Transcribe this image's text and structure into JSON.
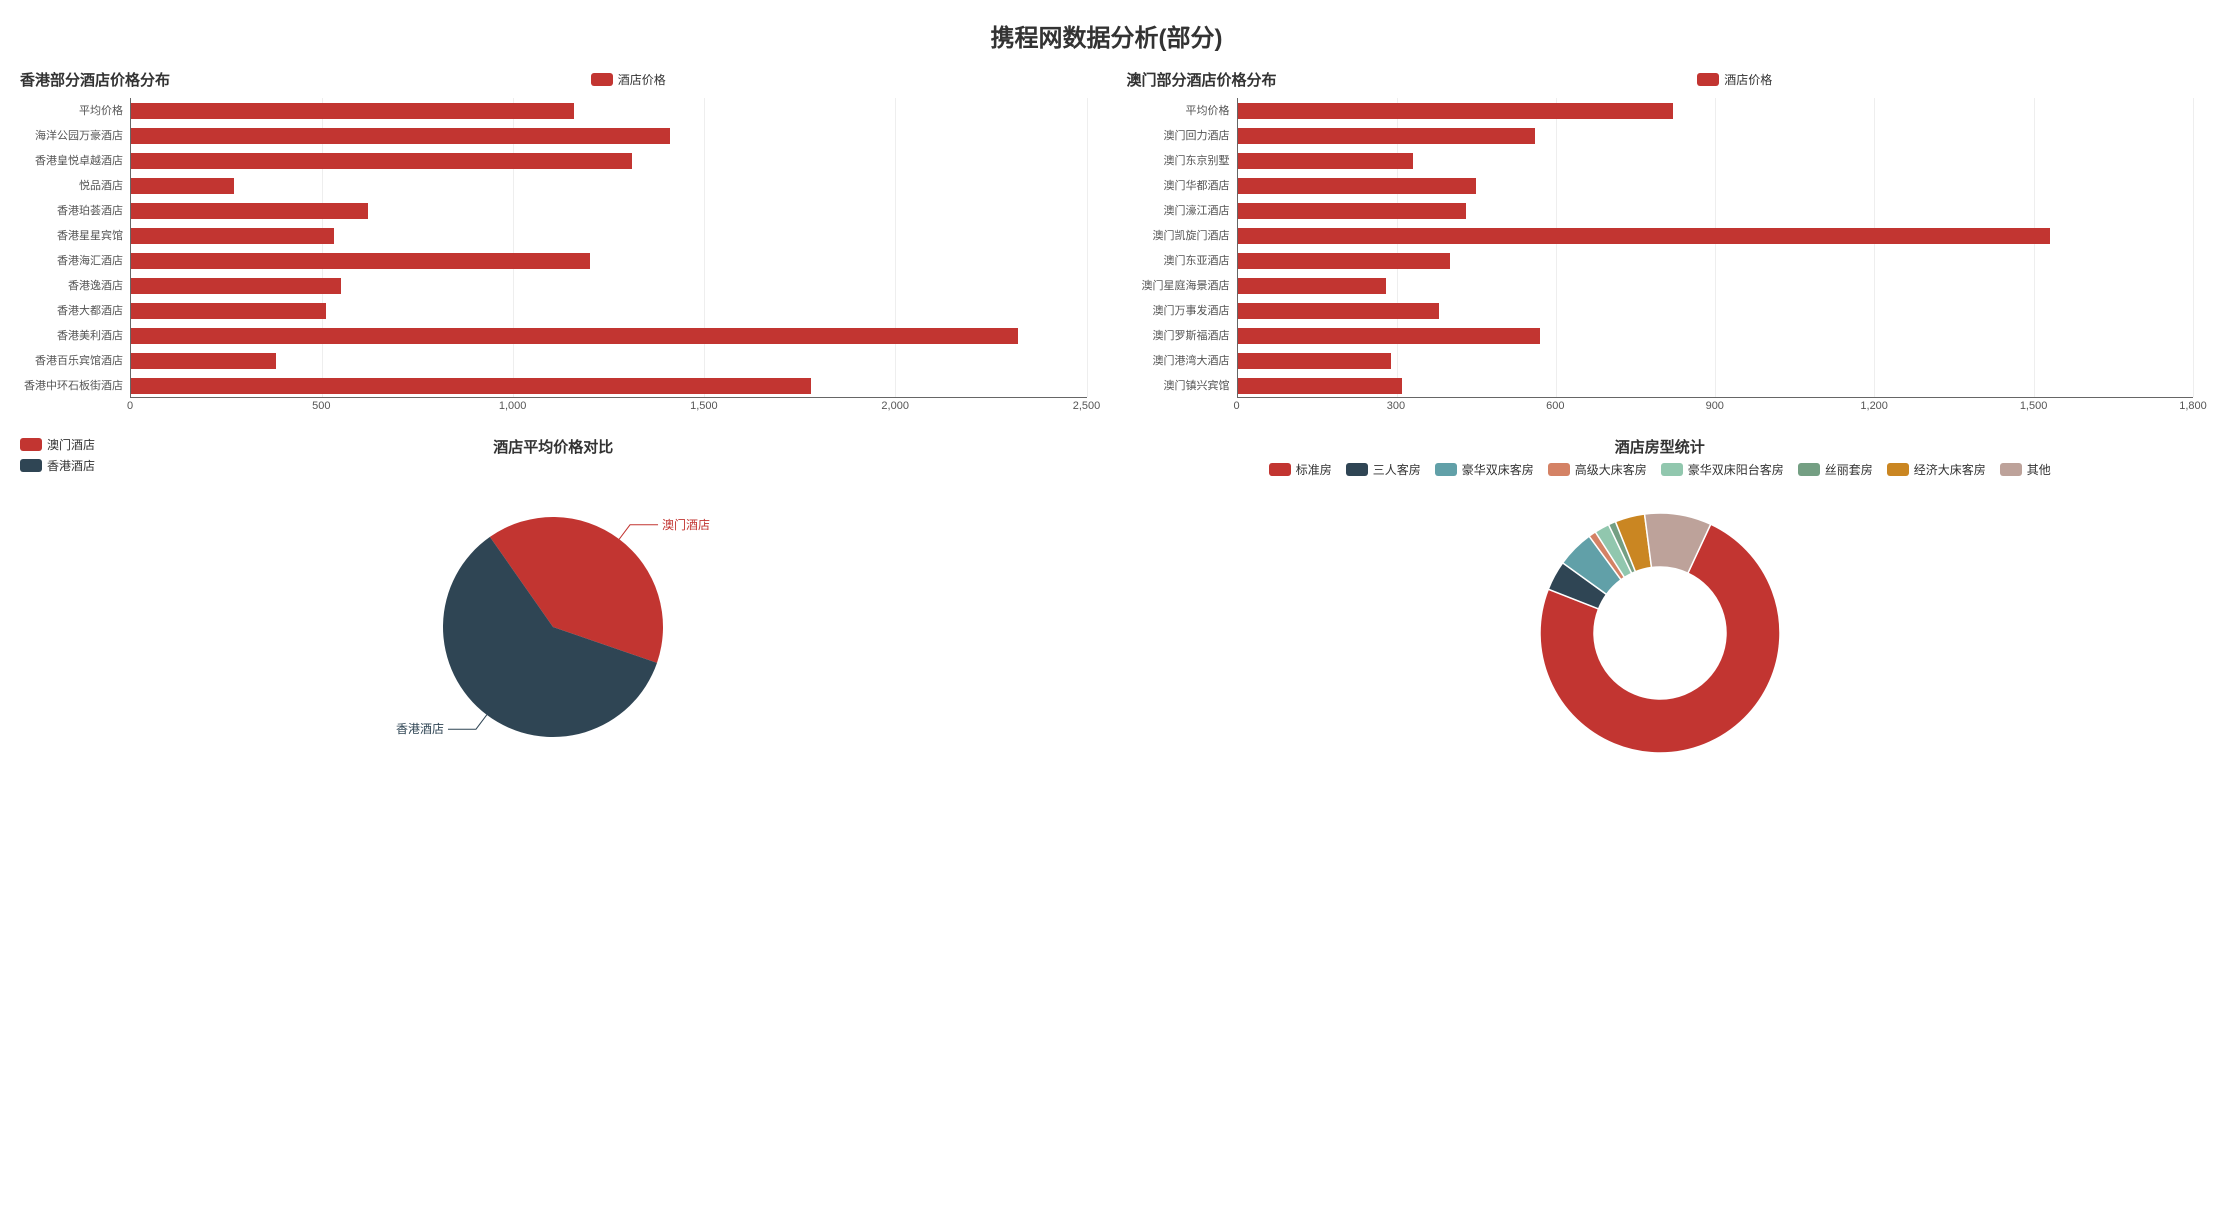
{
  "page_title": "携程网数据分析(部分)",
  "colors": {
    "primary_red": "#c23531",
    "dark_blue": "#2f4554",
    "teal": "#61a0a8",
    "tan": "#d48265",
    "light_green": "#91c7ae",
    "olive": "#749f83",
    "ochre": "#ca8622",
    "beige": "#bda29a",
    "axis": "#666666",
    "grid": "#eeeeee",
    "text": "#555555",
    "bg": "#ffffff"
  },
  "hk_chart": {
    "type": "horizontal_bar",
    "title": "香港部分酒店价格分布",
    "legend_label": "酒店价格",
    "bar_color": "#c23531",
    "categories": [
      "平均价格",
      "海洋公园万豪酒店",
      "香港皇悦卓越酒店",
      "悦品酒店",
      "香港珀荟酒店",
      "香港星星宾馆",
      "香港海汇酒店",
      "香港逸酒店",
      "香港大都酒店",
      "香港美利酒店",
      "香港百乐宾馆酒店",
      "香港中环石板街酒店"
    ],
    "values": [
      1160,
      1410,
      1310,
      270,
      620,
      530,
      1200,
      550,
      510,
      2320,
      380,
      1780
    ],
    "xlim": [
      0,
      2500
    ],
    "xtick_step": 500,
    "xtick_labels": [
      "0",
      "500",
      "1,000",
      "1,500",
      "2,000",
      "2,500"
    ],
    "title_fontsize": 15,
    "label_fontsize": 11
  },
  "macau_chart": {
    "type": "horizontal_bar",
    "title": "澳门部分酒店价格分布",
    "legend_label": "酒店价格",
    "bar_color": "#c23531",
    "categories": [
      "平均价格",
      "澳门回力酒店",
      "澳门东京别墅",
      "澳门华都酒店",
      "澳门濠江酒店",
      "澳门凯旋门酒店",
      "澳门东亚酒店",
      "澳门星庭海景酒店",
      "澳门万事发酒店",
      "澳门罗斯福酒店",
      "澳门港湾大酒店",
      "澳门镇兴宾馆"
    ],
    "values": [
      820,
      560,
      330,
      450,
      430,
      1530,
      400,
      280,
      380,
      570,
      290,
      310
    ],
    "xlim": [
      0,
      1800
    ],
    "xtick_step": 300,
    "xtick_labels": [
      "0",
      "300",
      "600",
      "900",
      "1,200",
      "1,500",
      "1,800"
    ],
    "title_fontsize": 15,
    "label_fontsize": 11
  },
  "avg_pie": {
    "type": "pie",
    "title": "酒店平均价格对比",
    "slices": [
      {
        "label": "澳门酒店",
        "value": 40,
        "color": "#c23531"
      },
      {
        "label": "香港酒店",
        "value": 60,
        "color": "#2f4554"
      }
    ],
    "radius": 110,
    "label_fontsize": 12,
    "leader_color_matches_slice": true
  },
  "room_donut": {
    "type": "donut",
    "title": "酒店房型统计",
    "inner_ratio": 0.55,
    "slices": [
      {
        "label": "标准房",
        "value": 74,
        "color": "#c23531"
      },
      {
        "label": "三人客房",
        "value": 4,
        "color": "#2f4554"
      },
      {
        "label": "豪华双床客房",
        "value": 5,
        "color": "#61a0a8"
      },
      {
        "label": "高级大床客房",
        "value": 1,
        "color": "#d48265"
      },
      {
        "label": "豪华双床阳台客房",
        "value": 2,
        "color": "#91c7ae"
      },
      {
        "label": "丝丽套房",
        "value": 1,
        "color": "#749f83"
      },
      {
        "label": "经济大床客房",
        "value": 4,
        "color": "#ca8622"
      },
      {
        "label": "其他",
        "value": 9,
        "color": "#bda29a"
      }
    ],
    "radius": 120,
    "label_fontsize": 12
  }
}
